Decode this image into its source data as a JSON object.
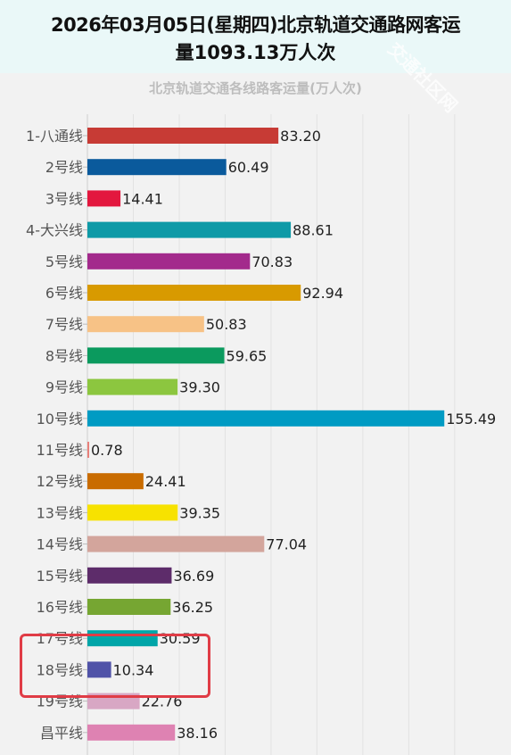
{
  "header": {
    "title_line1": "2026年03月05日(星期四)北京轨道交通路网客运",
    "title_line2": "量1093.13万人次"
  },
  "chart_data": {
    "type": "bar",
    "orientation": "horizontal",
    "title": "北京轨道交通各线路客运量(万人次)",
    "categories": [
      "1-八通线",
      "2号线",
      "3号线",
      "4-大兴线",
      "5号线",
      "6号线",
      "7号线",
      "8号线",
      "9号线",
      "10号线",
      "11号线",
      "12号线",
      "13号线",
      "14号线",
      "15号线",
      "16号线",
      "17号线",
      "18号线",
      "19号线",
      "昌平线"
    ],
    "values": [
      83.2,
      60.49,
      14.41,
      88.61,
      70.83,
      92.94,
      50.83,
      59.65,
      39.3,
      155.49,
      0.78,
      24.41,
      39.35,
      77.04,
      36.69,
      36.25,
      30.59,
      10.34,
      22.76,
      38.16
    ],
    "value_labels": [
      "83.20",
      "60.49",
      "14.41",
      "88.61",
      "70.83",
      "92.94",
      "50.83",
      "59.65",
      "39.30",
      "155.49",
      "0.78",
      "24.41",
      "39.35",
      "77.04",
      "36.69",
      "36.25",
      "30.59",
      "10.34",
      "22.76",
      "38.16"
    ],
    "colors": [
      "#c73b35",
      "#0a5a9c",
      "#e3173e",
      "#0f9aa7",
      "#a32a8c",
      "#d89a00",
      "#f7c286",
      "#0b9a5e",
      "#8cc63f",
      "#009bc3",
      "#e8807a",
      "#c96c00",
      "#f7e200",
      "#d3a59c",
      "#5d2c6a",
      "#76a632",
      "#00a5a8",
      "#5053a8",
      "#d8a7c4",
      "#de82b2"
    ],
    "xlim": [
      0,
      160
    ],
    "grid": true,
    "legend": "none"
  },
  "watermark": "交通社区网",
  "annotation": {
    "highlight": "18号线"
  }
}
